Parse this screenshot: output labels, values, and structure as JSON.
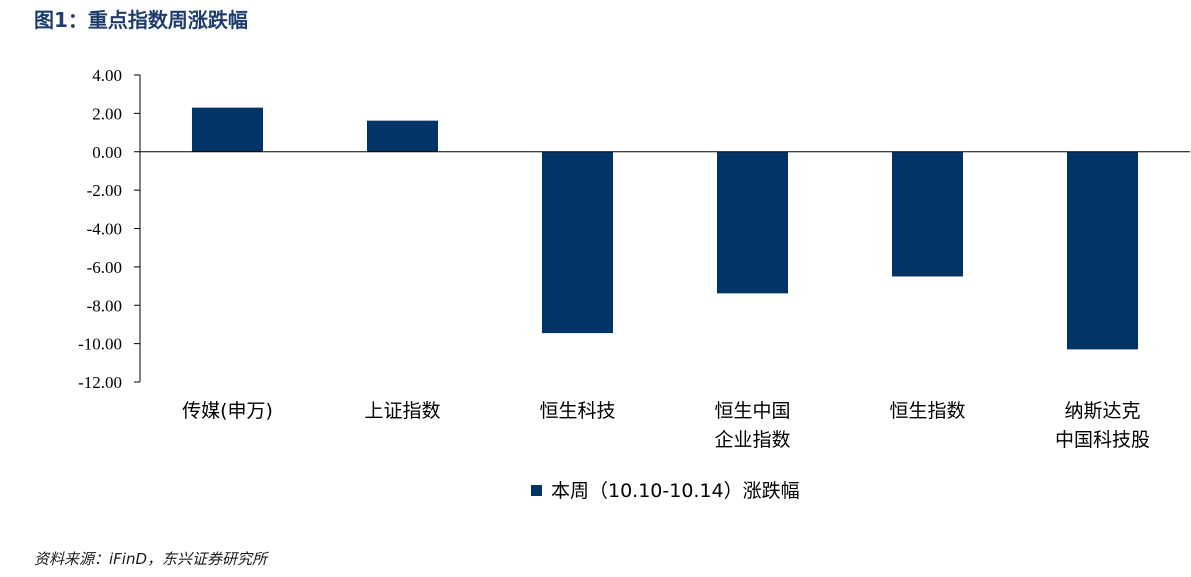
{
  "figure": {
    "title": "图1：重点指数周涨跌幅",
    "source": "资料来源：iFinD，东兴证券研究所"
  },
  "colors": {
    "bar": "#003366",
    "title": "#1f3e6d"
  },
  "chart_data": {
    "type": "bar",
    "categories": [
      [
        "传媒(申万)"
      ],
      [
        "上证指数"
      ],
      [
        "恒生科技"
      ],
      [
        "恒生中国",
        "企业指数"
      ],
      [
        "恒生指数"
      ],
      [
        "纳斯达克",
        "中国科技股"
      ]
    ],
    "series": [
      {
        "name": "本周（10.10-10.14）涨跌幅",
        "values": [
          2.3,
          1.62,
          -9.45,
          -7.38,
          -6.5,
          -10.3
        ]
      }
    ],
    "ylim": [
      -12,
      4
    ],
    "yticks": [
      "4.00",
      "2.00",
      "0.00",
      "-2.00",
      "-4.00",
      "-6.00",
      "-8.00",
      "-10.00",
      "-12.00"
    ],
    "ytick_values": [
      4,
      2,
      0,
      -2,
      -4,
      -6,
      -8,
      -10,
      -12
    ],
    "grid": false,
    "legend_position": "bottom"
  }
}
